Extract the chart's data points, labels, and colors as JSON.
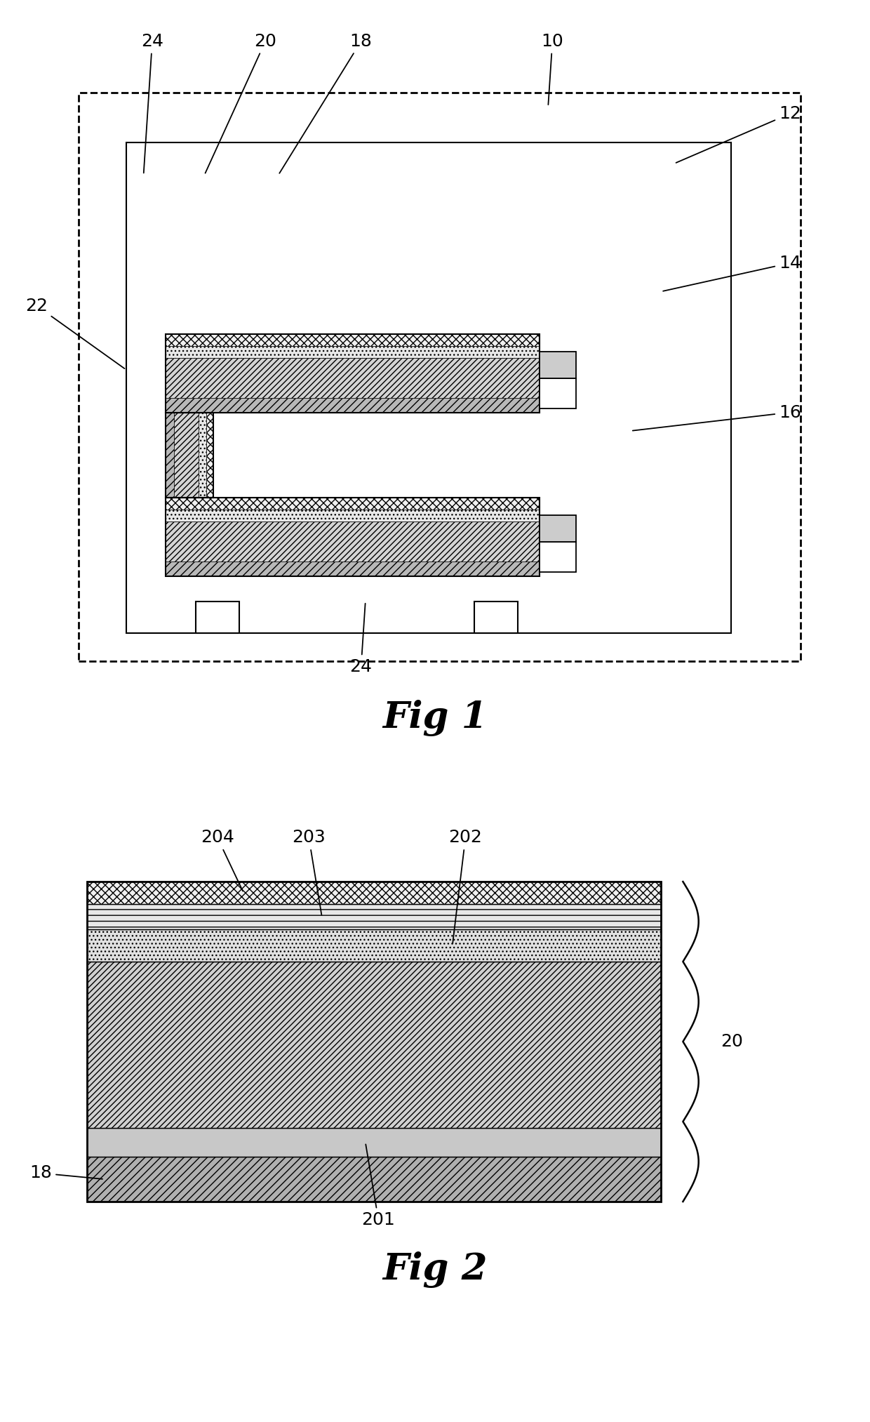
{
  "bg_color": "#ffffff",
  "fig1": {
    "title": "Fig 1",
    "label_fontsize": 18,
    "title_fontsize": 38
  },
  "fig2": {
    "title": "Fig 2",
    "label_fontsize": 18,
    "title_fontsize": 38
  }
}
